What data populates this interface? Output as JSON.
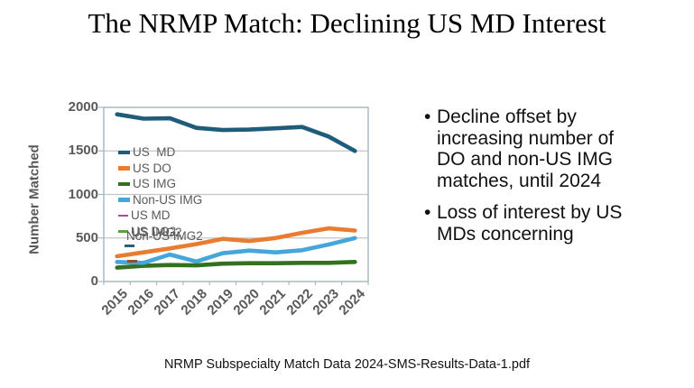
{
  "slide": {
    "title": "The NRMP Match: Declining US MD Interest",
    "footer": "NRMP Subspecialty Match Data 2024-SMS-Results-Data-1.pdf",
    "bullets": [
      {
        "lines": [
          "Decline offset by",
          "increasing number of",
          "DO and non-US IMG",
          "matches, until 2024"
        ]
      },
      {
        "lines": [
          "Loss of interest by US",
          "MDs concerning"
        ]
      }
    ]
  },
  "chart_data": {
    "type": "line",
    "title": "",
    "xlabel": "",
    "ylabel": "Number Matched",
    "ylim": [
      0,
      2000
    ],
    "yticks": [
      0,
      500,
      1000,
      1500,
      2000
    ],
    "grid": true,
    "legend_position": "inside-upper-left",
    "categories": [
      "2015",
      "2016",
      "2017",
      "2018",
      "2019",
      "2020",
      "2021",
      "2022",
      "2023",
      "2024"
    ],
    "series": [
      {
        "name": "US  MD",
        "color": "#1F5C7C",
        "style": "thick",
        "values": [
          1920,
          1870,
          1875,
          1765,
          1740,
          1745,
          1760,
          1775,
          1665,
          1500
        ]
      },
      {
        "name": "US DO",
        "color": "#E87C30",
        "style": "thick",
        "values": [
          290,
          335,
          380,
          430,
          490,
          465,
          500,
          560,
          610,
          585
        ]
      },
      {
        "name": "US IMG",
        "color": "#337020",
        "style": "thick",
        "values": [
          160,
          180,
          190,
          185,
          205,
          210,
          210,
          215,
          215,
          225
        ]
      },
      {
        "name": "Non-US IMG",
        "color": "#45A6DC",
        "style": "thick",
        "values": [
          225,
          215,
          310,
          230,
          325,
          355,
          335,
          360,
          425,
          500
        ]
      },
      {
        "name": "US MD",
        "color": "#A84CA0",
        "style": "thin",
        "values": []
      },
      {
        "name": "US DO2",
        "color": "#55A33C",
        "style": "thin",
        "values": []
      },
      {
        "name": "US IMG2",
        "color": "#2C5F70",
        "style": "thin",
        "values": []
      },
      {
        "name": "Non-US IMG2",
        "color": "#8C512E",
        "style": "thin",
        "values": []
      }
    ],
    "colors": {
      "grid": "#C4C4C4",
      "border": "#A6BAC6",
      "axis_text": "#595959"
    }
  }
}
